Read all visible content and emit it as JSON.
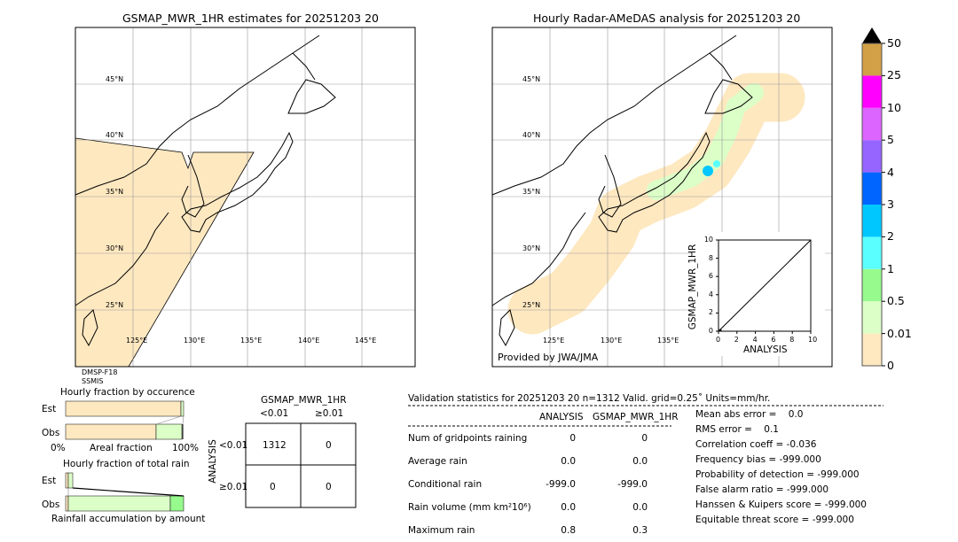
{
  "left_map": {
    "title": "GSMAP_MWR_1HR estimates for 20251203 20",
    "sensor": [
      "DMSP-F18",
      "SSMIS"
    ]
  },
  "right_map": {
    "title": "Hourly Radar-AMeDAS analysis for 20251203 20",
    "credit": "Provided by JWA/JMA"
  },
  "lat_labels": [
    "45°N",
    "40°N",
    "35°N",
    "30°N",
    "25°N"
  ],
  "lon_labels": [
    "125°E",
    "130°E",
    "135°E",
    "140°E",
    "145°E"
  ],
  "colorbar": {
    "labels": [
      "0",
      "0.01",
      "0.5",
      "1",
      "2",
      "3",
      "4",
      "5",
      "10",
      "25",
      "50"
    ],
    "colors": [
      "#fee8c0",
      "#dcffc8",
      "#96fa8c",
      "#5affff",
      "#00c8ff",
      "#0064ff",
      "#9664ff",
      "#dc64ff",
      "#ff00ff",
      "#d2a046"
    ],
    "extend_color": "#000000"
  },
  "scatter": {
    "xlabel": "ANALYSIS",
    "ylabel": "GSMAP_MWR_1HR",
    "ticks": [
      "0",
      "2",
      "4",
      "6",
      "8",
      "10"
    ],
    "ylabels": [
      "0",
      "2",
      "4",
      "6",
      "8",
      "10"
    ]
  },
  "occurrence": {
    "title": "Hourly fraction by occurence",
    "est": "Est",
    "obs": "Obs",
    "xmin": "0%",
    "xlabel": "Areal fraction",
    "xmax": "100%"
  },
  "total_rain": {
    "title": "Hourly fraction of total rain",
    "est": "Est",
    "obs": "Obs",
    "xlabel": "Rainfall accumulation by amount"
  },
  "contingency": {
    "title": "GSMAP_MWR_1HR",
    "col1": "<0.01",
    "col2": "≥0.01",
    "ylabel": "ANALYSIS",
    "row1": "<0.01",
    "row2": "≥0.01",
    "cells": [
      "1312",
      "0",
      "0",
      "0"
    ]
  },
  "stats": {
    "header": "Validation statistics for 20251203 20  n=1312 Valid. grid=0.25˚ Units=mm/hr.",
    "col_a": "ANALYSIS",
    "col_b": "GSMAP_MWR_1HR",
    "rows": [
      {
        "label": "Num of gridpoints raining",
        "a": "0",
        "b": "0"
      },
      {
        "label": "Average rain",
        "a": "0.0",
        "b": "0.0"
      },
      {
        "label": "Conditional rain",
        "a": "-999.0",
        "b": "-999.0"
      },
      {
        "label": "Rain volume (mm km²10⁶)",
        "a": "0.0",
        "b": "0.0"
      },
      {
        "label": "Maximum rain",
        "a": "0.8",
        "b": "0.3"
      }
    ],
    "scores": [
      "Mean abs error =    0.0",
      "RMS error =    0.1",
      "Correlation coeff = -0.036",
      "Frequency bias = -999.000",
      "Probability of detection = -999.000",
      "False alarm ratio = -999.000",
      "Hanssen & Kuipers score = -999.000",
      "Equitable threat score = -999.000"
    ]
  },
  "chart_data": [
    {
      "type": "map",
      "title": "GSMAP_MWR_1HR estimates for 20251203 20",
      "lat_range": [
        20,
        50
      ],
      "lon_range": [
        120,
        150
      ]
    },
    {
      "type": "map",
      "title": "Hourly Radar-AMeDAS analysis for 20251203 20",
      "lat_range": [
        20,
        50
      ],
      "lon_range": [
        120,
        150
      ]
    },
    {
      "type": "scatter",
      "xlabel": "ANALYSIS",
      "ylabel": "GSMAP_MWR_1HR",
      "xlim": [
        0,
        10
      ],
      "ylim": [
        0,
        10
      ]
    },
    {
      "type": "bar",
      "title": "Hourly fraction by occurence",
      "categories": [
        "Est",
        "Obs"
      ],
      "series": [
        {
          "values": [
            99,
            76
          ]
        },
        {
          "values": [
            1,
            23
          ]
        }
      ]
    },
    {
      "type": "bar",
      "title": "Hourly fraction of total rain",
      "categories": [
        "Est",
        "Obs"
      ],
      "series": [
        {
          "values": [
            2,
            2
          ]
        },
        {
          "values": [
            4,
            87
          ]
        },
        {
          "values": [
            0,
            11
          ]
        }
      ]
    }
  ]
}
